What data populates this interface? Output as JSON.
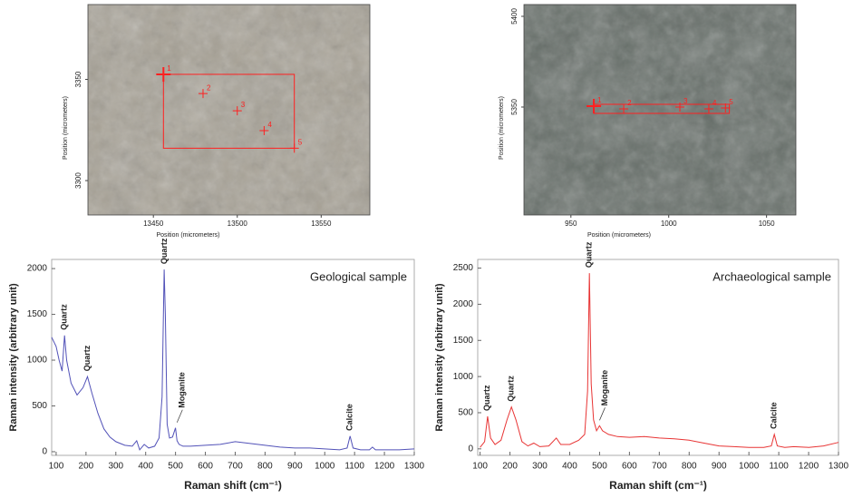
{
  "chart_data": [
    {
      "type": "image",
      "xlabel": "Position (micrometers)",
      "ylabel": "Position (micrometers)",
      "xlim": [
        13411,
        13579
      ],
      "ylim": [
        3283,
        3387
      ],
      "xticks": [
        13450,
        13500,
        13550
      ],
      "yticks": [
        3300,
        3350
      ],
      "region": {
        "x0": 13456,
        "x1": 13534,
        "y0": 3316,
        "y1": 3352.5
      },
      "marker_color": "#ff2020",
      "points": [
        {
          "label": "1",
          "x": 13456,
          "y": 3352.5
        },
        {
          "label": "2",
          "x": 13479.6,
          "y": 3343
        },
        {
          "label": "3",
          "x": 13500,
          "y": 3334.5
        },
        {
          "label": "4",
          "x": 13516,
          "y": 3324.7
        },
        {
          "label": "5",
          "x": 13534,
          "y": 3316
        }
      ]
    },
    {
      "type": "image",
      "xlabel": "Position (micrometers)",
      "ylabel": "Position (micrometers)",
      "xlim": [
        926,
        1065
      ],
      "ylim": [
        5290.5,
        5406.5
      ],
      "xticks": [
        950,
        1000,
        1050
      ],
      "yticks": [
        5350,
        5400
      ],
      "region": {
        "x0": 961.7,
        "x1": 1031,
        "y0": 5346.5,
        "y1": 5351.5
      },
      "marker_color": "#ff2020",
      "points": [
        {
          "label": "1",
          "x": 961.7,
          "y": 5350.5
        },
        {
          "label": "2",
          "x": 977,
          "y": 5349
        },
        {
          "label": "3",
          "x": 1005.7,
          "y": 5350
        },
        {
          "label": "4",
          "x": 1020.5,
          "y": 5349
        },
        {
          "label": "5",
          "x": 1029,
          "y": 5349.5
        }
      ]
    },
    {
      "type": "line",
      "label": "Geological sample",
      "xlabel": "Raman shift (cm⁻¹)",
      "ylabel": "Raman intensity (arbitrary unit)",
      "xlim": [
        85,
        1300
      ],
      "ylim": [
        -40,
        2100
      ],
      "xticks": [
        100,
        200,
        300,
        400,
        500,
        600,
        700,
        800,
        900,
        1000,
        1100,
        1200,
        1300
      ],
      "yticks": [
        0,
        500,
        1000,
        1500,
        2000
      ],
      "color": "#5252b8",
      "x": [
        85,
        100,
        110,
        120,
        128,
        135,
        150,
        170,
        190,
        205,
        220,
        240,
        260,
        280,
        300,
        330,
        355,
        370,
        380,
        395,
        410,
        430,
        445,
        455,
        462,
        466,
        472,
        480,
        490,
        500,
        505,
        512,
        525,
        550,
        600,
        650,
        700,
        750,
        800,
        850,
        900,
        950,
        1000,
        1050,
        1075,
        1085,
        1095,
        1120,
        1150,
        1160,
        1170,
        1200,
        1250,
        1300
      ],
      "values": [
        1250,
        1150,
        1000,
        880,
        1270,
        1000,
        750,
        620,
        700,
        820,
        640,
        420,
        250,
        160,
        110,
        70,
        60,
        120,
        20,
        80,
        40,
        60,
        150,
        600,
        1990,
        1500,
        300,
        150,
        160,
        260,
        120,
        80,
        60,
        60,
        70,
        80,
        110,
        90,
        70,
        50,
        40,
        40,
        30,
        20,
        40,
        170,
        40,
        20,
        20,
        50,
        20,
        20,
        20,
        30
      ],
      "annotations": [
        {
          "text": "Quartz",
          "x": 128,
          "y": 1270
        },
        {
          "text": "Quartz",
          "x": 205,
          "y": 820
        },
        {
          "text": "Quartz",
          "x": 463,
          "y": 1990
        },
        {
          "text": "Moganite",
          "x": 505,
          "y": 260
        },
        {
          "text": "Calcite",
          "x": 1085,
          "y": 170
        }
      ]
    },
    {
      "type": "line",
      "label": "Archaeological sample",
      "xlabel": "Raman shift (cm⁻¹)",
      "ylabel": "Raman intensity (arbitrary unit)",
      "xlim": [
        92,
        1300
      ],
      "ylim": [
        -90,
        2620
      ],
      "xticks": [
        100,
        200,
        300,
        400,
        500,
        600,
        700,
        800,
        900,
        1000,
        1100,
        1200,
        1300
      ],
      "yticks": [
        0,
        500,
        1000,
        1500,
        2000,
        2500
      ],
      "color": "#e83434",
      "x": [
        100,
        115,
        125,
        135,
        150,
        170,
        190,
        205,
        220,
        240,
        260,
        280,
        300,
        330,
        355,
        370,
        400,
        430,
        450,
        460,
        466,
        472,
        480,
        490,
        500,
        510,
        530,
        560,
        600,
        650,
        700,
        750,
        800,
        850,
        900,
        950,
        1000,
        1050,
        1075,
        1085,
        1095,
        1120,
        1150,
        1200,
        1250,
        1300
      ],
      "values": [
        20,
        100,
        450,
        150,
        60,
        120,
        400,
        580,
        400,
        100,
        40,
        80,
        30,
        40,
        150,
        60,
        60,
        120,
        200,
        800,
        2430,
        900,
        400,
        250,
        320,
        250,
        200,
        170,
        160,
        170,
        150,
        140,
        120,
        80,
        40,
        30,
        20,
        20,
        40,
        200,
        40,
        20,
        30,
        20,
        40,
        90
      ],
      "annotations": [
        {
          "text": "Quartz",
          "x": 125,
          "y": 450
        },
        {
          "text": "Quartz",
          "x": 205,
          "y": 580
        },
        {
          "text": "Quartz",
          "x": 466,
          "y": 2430
        },
        {
          "text": "Moganite",
          "x": 500,
          "y": 320
        },
        {
          "text": "Calcite",
          "x": 1085,
          "y": 200
        }
      ]
    }
  ]
}
